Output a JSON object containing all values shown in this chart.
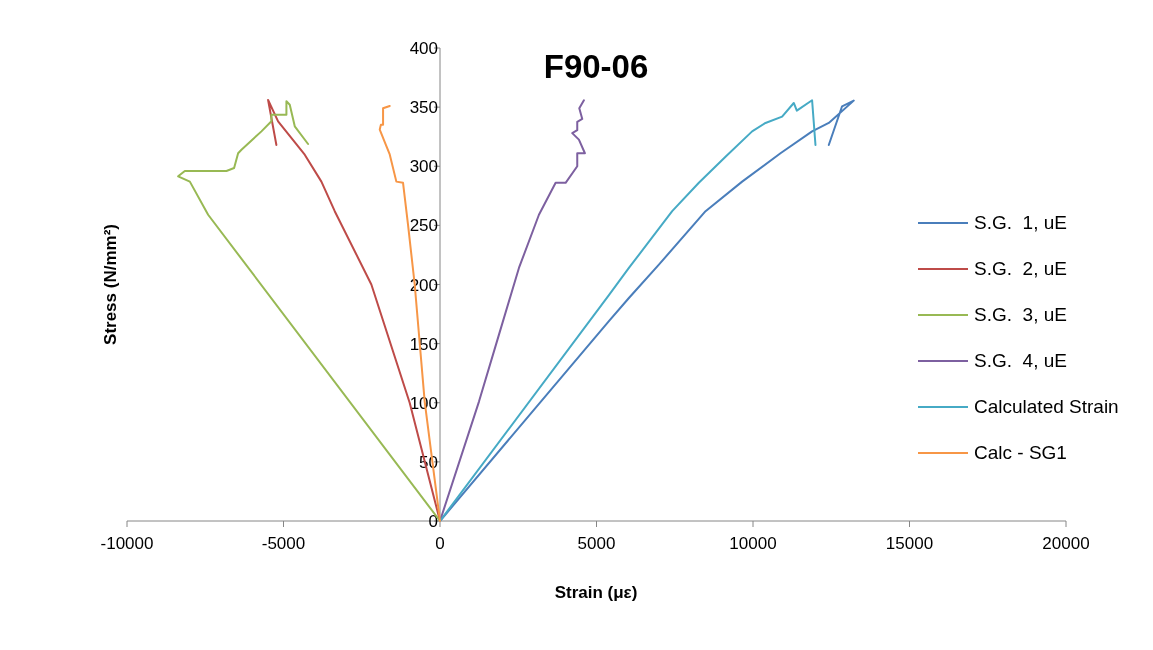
{
  "chart_data": {
    "type": "line",
    "title": "F90-06",
    "xlabel": "Strain (με)",
    "ylabel": "Stress (N/mm²)",
    "xlim": [
      -10000,
      20000
    ],
    "xticks": [
      -10000,
      -5000,
      0,
      5000,
      10000,
      15000,
      20000
    ],
    "ylim": [
      0,
      400
    ],
    "yticks": [
      0,
      50,
      100,
      150,
      200,
      250,
      300,
      350,
      400
    ],
    "grid": false,
    "legend": "right",
    "marker": "none",
    "line_style": "solid",
    "series": [
      {
        "name": "S.G.  1, uE",
        "color": "#4a7ebb",
        "x": [
          0,
          5396,
          6035,
          6993,
          8484,
          9653,
          10878,
          11888,
          12421,
          13219,
          12846,
          12421
        ],
        "values": [
          0,
          169,
          188.6,
          216.8,
          262,
          287,
          311,
          329.5,
          336.6,
          355.5,
          350.7,
          318
        ]
      },
      {
        "name": "S.G.  2, uE",
        "color": "#be4b48",
        "x": [
          0,
          -969,
          -2193,
          -3363,
          -3789,
          -4321,
          -5173,
          -5492,
          -5227
        ],
        "values": [
          0,
          100,
          200,
          262,
          287,
          309.8,
          338,
          356,
          318
        ]
      },
      {
        "name": "S.G.  3, uE",
        "color": "#98b954",
        "x": [
          0,
          -7408,
          -7992,
          -8366,
          -8152,
          -6823,
          -6578,
          -6450,
          -6343,
          -5705,
          -5386,
          -5386,
          -4907,
          -4907,
          -4800,
          -4640,
          -4215
        ],
        "values": [
          0,
          259,
          287,
          291.5,
          296,
          296,
          298.5,
          311,
          314,
          329.5,
          338,
          343.6,
          343.6,
          355,
          352,
          333.8,
          318.8
        ]
      },
      {
        "name": "S.G.  4, uE",
        "color": "#7d60a0",
        "x": [
          0,
          1245,
          1884,
          2522,
          3161,
          3694,
          4013,
          4385,
          4385,
          4630,
          4438,
          4225,
          4385,
          4385,
          4545,
          4450,
          4598
        ],
        "values": [
          0,
          101,
          157.6,
          214,
          259,
          286,
          286,
          300,
          311,
          311,
          322.5,
          328,
          330.5,
          337.6,
          340,
          349,
          355.8
        ]
      },
      {
        "name": "Calculated Strain",
        "color": "#46aac5",
        "x": [
          0,
          5396,
          6035,
          7418,
          8270,
          9122,
          9972,
          10400,
          10930,
          11303,
          11400,
          11888,
          11996
        ],
        "values": [
          0,
          191,
          214,
          262,
          286,
          308,
          329.5,
          336.6,
          342,
          353.5,
          347,
          355.8,
          318
        ]
      },
      {
        "name": "Calc - SG1",
        "color": "#f79646",
        "x": [
          0,
          -489,
          -808,
          -1022,
          -1181,
          -1394,
          -1606,
          -1713,
          -1925,
          -1890,
          -1819,
          -1819,
          -1606
        ],
        "values": [
          0,
          101,
          200,
          250.6,
          286,
          287,
          310,
          317,
          331,
          335,
          335,
          349,
          351
        ]
      }
    ]
  }
}
